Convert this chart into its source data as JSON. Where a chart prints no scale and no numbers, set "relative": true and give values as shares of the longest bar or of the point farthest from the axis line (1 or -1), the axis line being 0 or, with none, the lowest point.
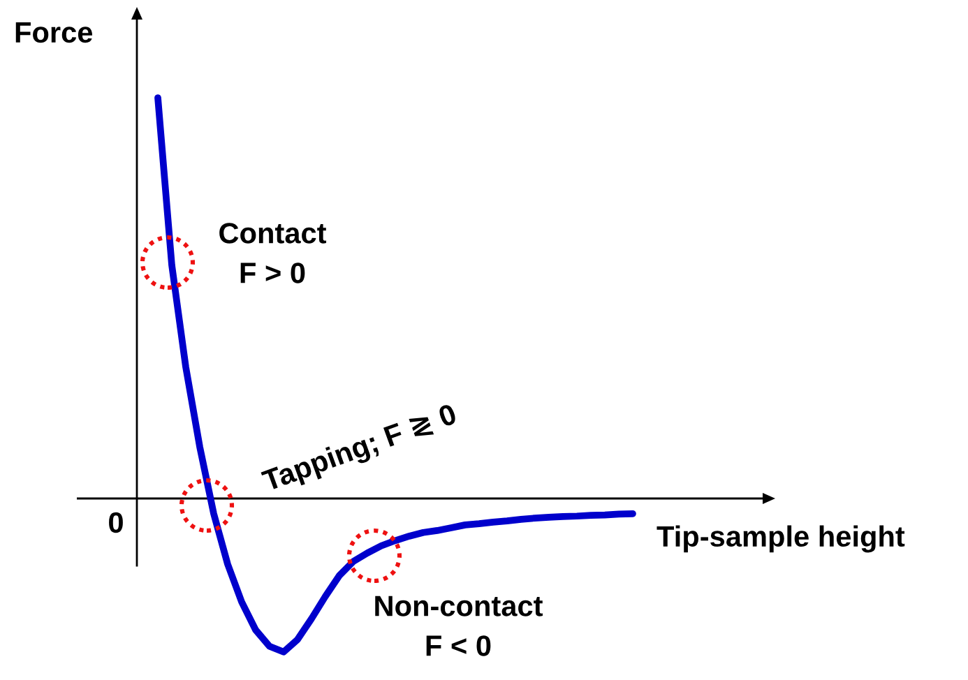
{
  "chart_data": {
    "type": "line",
    "relative": true,
    "xlabel": "Tip-sample height",
    "ylabel": "Force",
    "color": "#0000cc",
    "marker": "none",
    "line_style": "solid",
    "categories": [
      null,
      null,
      null,
      null,
      null,
      null,
      null,
      null,
      null,
      null,
      null,
      null,
      null,
      null,
      null,
      null,
      null,
      null,
      null,
      null,
      null,
      null,
      null,
      null,
      null,
      null,
      null,
      null,
      null,
      null,
      null,
      null,
      null,
      null,
      null
    ],
    "values": [
      1.0,
      0.582,
      0.328,
      0.129,
      -0.038,
      -0.164,
      -0.258,
      -0.328,
      -0.369,
      -0.383,
      -0.352,
      -0.3,
      -0.244,
      -0.192,
      -0.157,
      -0.136,
      -0.118,
      -0.105,
      -0.094,
      -0.085,
      -0.08,
      -0.073,
      -0.066,
      -0.063,
      -0.059,
      -0.056,
      -0.052,
      -0.049,
      -0.047,
      -0.045,
      -0.044,
      -0.042,
      -0.041,
      -0.039,
      -0.038
    ],
    "annotations": [
      "0",
      "Contact\nF > 0",
      "Tapping; F ≷ 0",
      "Non-contact\nF < 0"
    ]
  }
}
